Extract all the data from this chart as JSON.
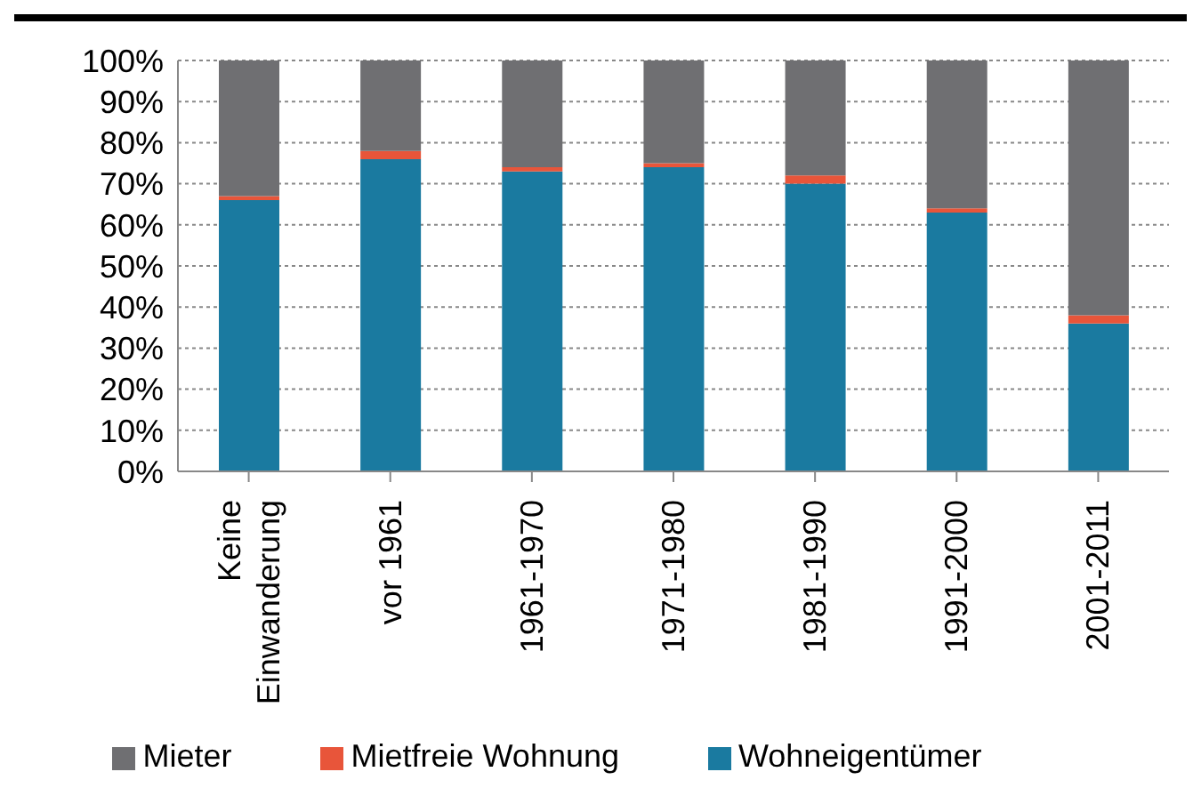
{
  "chart_data": {
    "type": "bar",
    "stacked": true,
    "categories": [
      "Keine Einwanderung",
      "vor 1961",
      "1961-1970",
      "1971-1980",
      "1981-1990",
      "1991-2000",
      "2001-2011"
    ],
    "series": [
      {
        "name": "Wohneigentümer",
        "color": "#1a7aa0",
        "values": [
          66,
          76,
          73,
          74,
          70,
          63,
          36
        ]
      },
      {
        "name": "Mietfreie Wohnung",
        "color": "#e8553a",
        "values": [
          1,
          2,
          1,
          1,
          2,
          1,
          2
        ]
      },
      {
        "name": "Mieter",
        "color": "#6f6f72",
        "values": [
          33,
          22,
          26,
          25,
          28,
          36,
          62
        ]
      }
    ],
    "ylim": [
      0,
      100
    ],
    "yticks": [
      {
        "value": 0,
        "label": "0%"
      },
      {
        "value": 10,
        "label": "10%"
      },
      {
        "value": 20,
        "label": "20%"
      },
      {
        "value": 30,
        "label": "30%"
      },
      {
        "value": 40,
        "label": "40%"
      },
      {
        "value": 50,
        "label": "50%"
      },
      {
        "value": 60,
        "label": "60%"
      },
      {
        "value": 70,
        "label": "70%"
      },
      {
        "value": 80,
        "label": "80%"
      },
      {
        "value": 90,
        "label": "90%"
      },
      {
        "value": 100,
        "label": "100%"
      }
    ],
    "grid": "y",
    "legend": "bottom"
  }
}
